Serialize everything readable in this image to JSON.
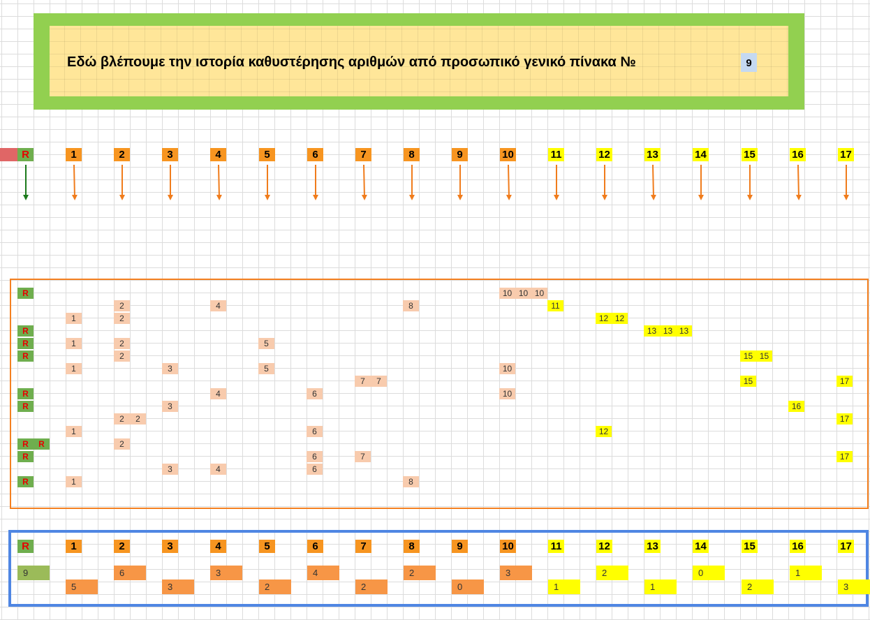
{
  "banner": {
    "text": "Εδώ βλέπουμε την ιστορία καθυστέρησης αριθμών από προσωπικό γενικό πίνακα №",
    "table_number": "9"
  },
  "colors": {
    "banner_outer": "#92d050",
    "banner_inner": "#ffe699",
    "r_cell": "#6fae4e",
    "r_text": "#e60000",
    "orange_header": "#f79520",
    "yellow_header": "#ffff00",
    "peach_cell": "#f8cbad",
    "orange_frame": "#f48020",
    "blue_frame": "#4f86e3",
    "arrow_orange": "#f07c1c",
    "arrow_green": "#1c7a1c"
  },
  "headers": [
    "R",
    "1",
    "2",
    "3",
    "4",
    "5",
    "6",
    "7",
    "8",
    "9",
    "10",
    "11",
    "12",
    "13",
    "14",
    "15",
    "16",
    "17"
  ],
  "history": [
    {
      "cells": [
        {
          "col": 0,
          "text": "R"
        },
        {
          "col": 30,
          "text": "10"
        },
        {
          "col": 31,
          "text": "10"
        },
        {
          "col": 32,
          "text": "10"
        }
      ]
    },
    {
      "cells": [
        {
          "col": 6,
          "text": "2"
        },
        {
          "col": 12,
          "text": "4"
        },
        {
          "col": 24,
          "text": "8"
        },
        {
          "col": 33,
          "text": "11"
        }
      ]
    },
    {
      "cells": [
        {
          "col": 3,
          "text": "1"
        },
        {
          "col": 6,
          "text": "2"
        },
        {
          "col": 36,
          "text": "12"
        },
        {
          "col": 37,
          "text": "12"
        }
      ]
    },
    {
      "cells": [
        {
          "col": 0,
          "text": "R"
        },
        {
          "col": 39,
          "text": "13"
        },
        {
          "col": 40,
          "text": "13"
        },
        {
          "col": 41,
          "text": "13"
        }
      ]
    },
    {
      "cells": [
        {
          "col": 0,
          "text": "R"
        },
        {
          "col": 3,
          "text": "1"
        },
        {
          "col": 6,
          "text": "2"
        },
        {
          "col": 15,
          "text": "5"
        }
      ]
    },
    {
      "cells": [
        {
          "col": 0,
          "text": "R"
        },
        {
          "col": 6,
          "text": "2"
        },
        {
          "col": 45,
          "text": "15"
        },
        {
          "col": 46,
          "text": "15"
        }
      ]
    },
    {
      "cells": [
        {
          "col": 3,
          "text": "1"
        },
        {
          "col": 9,
          "text": "3"
        },
        {
          "col": 15,
          "text": "5"
        },
        {
          "col": 30,
          "text": "10"
        }
      ]
    },
    {
      "cells": [
        {
          "col": 21,
          "text": "7"
        },
        {
          "col": 22,
          "text": "7"
        },
        {
          "col": 45,
          "text": "15"
        },
        {
          "col": 51,
          "text": "17"
        }
      ]
    },
    {
      "cells": [
        {
          "col": 0,
          "text": "R"
        },
        {
          "col": 12,
          "text": "4"
        },
        {
          "col": 18,
          "text": "6"
        },
        {
          "col": 30,
          "text": "10"
        }
      ]
    },
    {
      "cells": [
        {
          "col": 0,
          "text": "R"
        },
        {
          "col": 9,
          "text": "3"
        },
        {
          "col": 48,
          "text": "16"
        }
      ]
    },
    {
      "cells": [
        {
          "col": 6,
          "text": "2"
        },
        {
          "col": 7,
          "text": "2"
        },
        {
          "col": 51,
          "text": "17"
        }
      ]
    },
    {
      "cells": [
        {
          "col": 3,
          "text": "1"
        },
        {
          "col": 18,
          "text": "6"
        },
        {
          "col": 36,
          "text": "12"
        }
      ]
    },
    {
      "cells": [
        {
          "col": 0,
          "text": "R"
        },
        {
          "col": 1,
          "text": "R"
        },
        {
          "col": 6,
          "text": "2"
        }
      ]
    },
    {
      "cells": [
        {
          "col": 0,
          "text": "R"
        },
        {
          "col": 18,
          "text": "6"
        },
        {
          "col": 21,
          "text": "7"
        },
        {
          "col": 51,
          "text": "17"
        }
      ]
    },
    {
      "cells": [
        {
          "col": 9,
          "text": "3"
        },
        {
          "col": 12,
          "text": "4"
        },
        {
          "col": 18,
          "text": "6"
        }
      ]
    },
    {
      "cells": [
        {
          "col": 0,
          "text": "R"
        },
        {
          "col": 3,
          "text": "1"
        },
        {
          "col": 24,
          "text": "8"
        }
      ]
    }
  ],
  "summary": {
    "headers": [
      "R",
      "1",
      "2",
      "3",
      "4",
      "5",
      "6",
      "7",
      "8",
      "9",
      "10",
      "11",
      "12",
      "13",
      "14",
      "15",
      "16",
      "17"
    ],
    "counts": [
      {
        "label": "R",
        "value": "9"
      },
      {
        "label": "1",
        "value": "5"
      },
      {
        "label": "2",
        "value": "6"
      },
      {
        "label": "3",
        "value": "3"
      },
      {
        "label": "4",
        "value": "3"
      },
      {
        "label": "5",
        "value": "2"
      },
      {
        "label": "6",
        "value": "4"
      },
      {
        "label": "7",
        "value": "2"
      },
      {
        "label": "8",
        "value": "2"
      },
      {
        "label": "9",
        "value": "0"
      },
      {
        "label": "10",
        "value": "3"
      },
      {
        "label": "11",
        "value": "1"
      },
      {
        "label": "12",
        "value": "2"
      },
      {
        "label": "13",
        "value": "1"
      },
      {
        "label": "14",
        "value": "0"
      },
      {
        "label": "15",
        "value": "2"
      },
      {
        "label": "16",
        "value": "1"
      },
      {
        "label": "17",
        "value": "3"
      }
    ]
  }
}
